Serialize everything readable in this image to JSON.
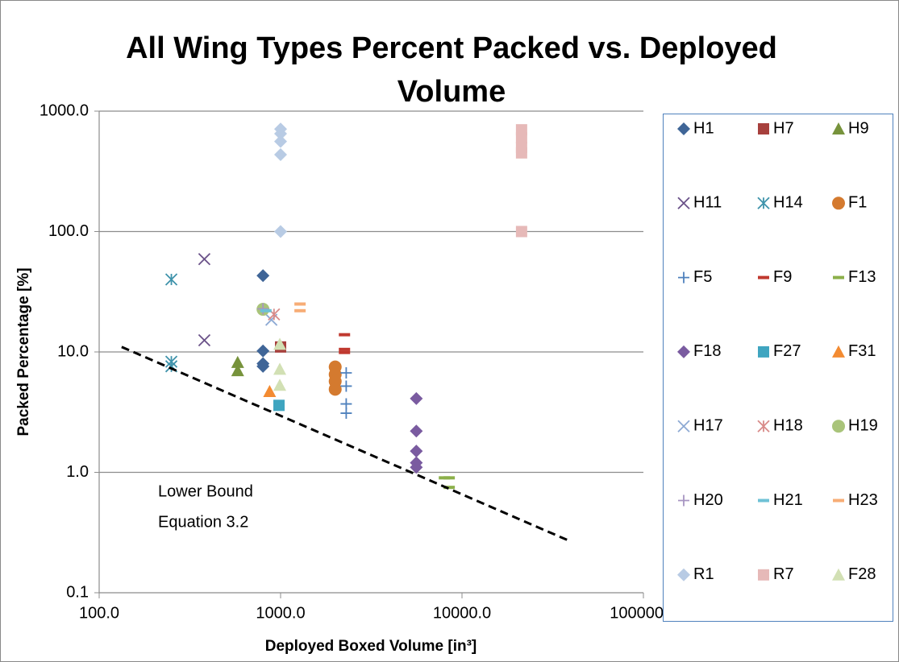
{
  "chart_data": {
    "type": "scatter",
    "title": [
      "All Wing Types Percent Packed vs. Deployed",
      "Volume"
    ],
    "x_label": "Deployed Boxed Volume [in³]",
    "y_label": "Packed Percentage [%]",
    "xscale": "log",
    "yscale": "log",
    "xlim": [
      100,
      100000
    ],
    "ylim": [
      0.1,
      1000
    ],
    "xticks": [
      {
        "value": 100,
        "label": "100.0"
      },
      {
        "value": 1000,
        "label": "1000.0"
      },
      {
        "value": 10000,
        "label": "10000.0"
      },
      {
        "value": 100000,
        "label": "100000.0"
      }
    ],
    "yticks": [
      {
        "value": 0.1,
        "label": "0.1"
      },
      {
        "value": 1,
        "label": "1.0"
      },
      {
        "value": 10,
        "label": "10.0"
      },
      {
        "value": 100,
        "label": "100.0"
      },
      {
        "value": 1000,
        "label": "1000.0"
      }
    ],
    "grid": true,
    "legend": "right",
    "series": [
      {
        "name": "H1",
        "color": "#3f6597",
        "marker": "diamond",
        "x": [
          800,
          800,
          800,
          800
        ],
        "values": [
          43,
          10.2,
          8,
          7.6
        ]
      },
      {
        "name": "H7",
        "color": "#a7403d",
        "marker": "square",
        "x": [
          1000
        ],
        "values": [
          11
        ]
      },
      {
        "name": "H9",
        "color": "#77933c",
        "marker": "triangle",
        "x": [
          580,
          580
        ],
        "values": [
          8.2,
          7
        ]
      },
      {
        "name": "H11",
        "color": "#6b5289",
        "marker": "x",
        "x": [
          380,
          380
        ],
        "values": [
          59,
          12.5
        ]
      },
      {
        "name": "H14",
        "color": "#3f93ab",
        "marker": "asterisk",
        "x": [
          250,
          250,
          250
        ],
        "values": [
          40,
          8.3,
          7.6
        ]
      },
      {
        "name": "F1",
        "color": "#d47a2f",
        "marker": "circle",
        "x": [
          2000,
          2000,
          2000,
          2000
        ],
        "values": [
          7.5,
          6.5,
          5.7,
          4.9
        ]
      },
      {
        "name": "F5",
        "color": "#4f81bd",
        "marker": "plus",
        "x": [
          2300,
          2300,
          2300,
          2300
        ],
        "values": [
          6.7,
          5.2,
          3.7,
          3.1
        ]
      },
      {
        "name": "F9",
        "color": "#c0392f",
        "marker": "dash",
        "x": [
          2250,
          2250,
          2250
        ],
        "values": [
          13.9,
          10.5,
          9.9
        ]
      },
      {
        "name": "F13",
        "color": "#8cb04a",
        "marker": "dash",
        "x": [
          8000,
          8500,
          8500
        ],
        "values": [
          0.9,
          0.9,
          0.75
        ]
      },
      {
        "name": "F18",
        "color": "#7a5ba0",
        "marker": "diamond",
        "x": [
          5600,
          5600,
          5600,
          5600,
          5600
        ],
        "values": [
          4.1,
          2.2,
          1.5,
          1.2,
          1.1
        ]
      },
      {
        "name": "F27",
        "color": "#3fa5c0",
        "marker": "square",
        "x": [
          980
        ],
        "values": [
          3.6
        ]
      },
      {
        "name": "F31",
        "color": "#f38b32",
        "marker": "triangle",
        "x": [
          870
        ],
        "values": [
          4.7
        ]
      },
      {
        "name": "H17",
        "color": "#8eaad4",
        "marker": "x",
        "x": [
          890
        ],
        "values": [
          18.5
        ]
      },
      {
        "name": "H18",
        "color": "#d88b89",
        "marker": "asterisk",
        "x": [
          920
        ],
        "values": [
          20.5
        ]
      },
      {
        "name": "H19",
        "color": "#a9c47a",
        "marker": "circle",
        "x": [
          800
        ],
        "values": [
          22.6
        ]
      },
      {
        "name": "H20",
        "color": "#a795c2",
        "marker": "plus",
        "x": [
          800
        ],
        "values": [
          22.8
        ]
      },
      {
        "name": "H21",
        "color": "#6ec1d6",
        "marker": "dash",
        "x": [
          830
        ],
        "values": [
          22
        ]
      },
      {
        "name": "H23",
        "color": "#f7ad76",
        "marker": "dash",
        "x": [
          1280,
          1280
        ],
        "values": [
          25,
          22
        ]
      },
      {
        "name": "R1",
        "color": "#b8cbe4",
        "marker": "diamond",
        "x": [
          1000,
          1000,
          1000,
          1000,
          1000
        ],
        "values": [
          710,
          650,
          560,
          435,
          100
        ]
      },
      {
        "name": "R7",
        "color": "#e6b9b8",
        "marker": "square",
        "x": [
          21300,
          21300,
          21300,
          21300,
          21300
        ],
        "values": [
          700,
          600,
          500,
          450,
          100
        ]
      },
      {
        "name": "F28",
        "color": "#d2e0b4",
        "marker": "triangle",
        "x": [
          990,
          990,
          990
        ],
        "values": [
          11.6,
          7.2,
          5.3
        ]
      }
    ],
    "trendline": {
      "x": [
        133,
        39000
      ],
      "values": [
        11,
        0.27
      ],
      "color": "#000000"
    },
    "annotation": [
      "Lower Bound",
      "Equation 3.2"
    ]
  }
}
